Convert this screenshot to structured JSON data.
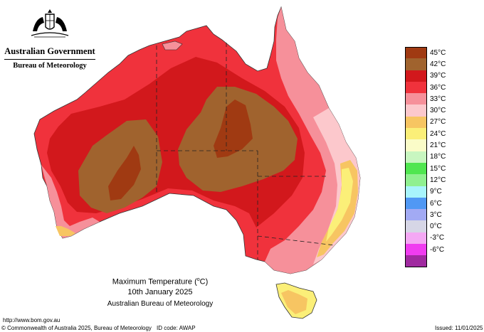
{
  "header": {
    "org_line1": "Australian Government",
    "org_line2": "Bureau of Meteorology"
  },
  "map_title": {
    "line1_prefix": "Maximum Temperature (",
    "line1_unit": "o",
    "line1_suffix": "C)",
    "line2": "10th January 2025",
    "line3": "Australian Bureau of Meteorology"
  },
  "legend": [
    {
      "label": "45°C",
      "color": "#a03a12"
    },
    {
      "label": "42°C",
      "color": "#a0632e"
    },
    {
      "label": "39°C",
      "color": "#d2181c"
    },
    {
      "label": "36°C",
      "color": "#f0323c"
    },
    {
      "label": "33°C",
      "color": "#f6909a"
    },
    {
      "label": "30°C",
      "color": "#fcc8cc"
    },
    {
      "label": "27°C",
      "color": "#f7c562"
    },
    {
      "label": "24°C",
      "color": "#fbef78"
    },
    {
      "label": "21°C",
      "color": "#fafcc8"
    },
    {
      "label": "18°C",
      "color": "#c8f6c0"
    },
    {
      "label": "15°C",
      "color": "#50e650"
    },
    {
      "label": "12°C",
      "color": "#90f090"
    },
    {
      "label": "9°C",
      "color": "#a8f4fc"
    },
    {
      "label": "6°C",
      "color": "#5098f4"
    },
    {
      "label": "3°C",
      "color": "#a2aaf4"
    },
    {
      "label": "0°C",
      "color": "#d6d6e6"
    },
    {
      "label": "-3°C",
      "color": "#f4a8f4"
    },
    {
      "label": "-6°C",
      "color": "#f03cf0"
    },
    {
      "label": "",
      "color": "#a02aa0"
    }
  ],
  "footer": {
    "url": "http://www.bom.gov.au",
    "copyright": "© Commonwealth of Australia 2025, Bureau of Meteorology",
    "id_code": "ID code: AWAP",
    "issued": "Issued: 11/01/2025"
  },
  "map": {
    "land_base_color": "#f0323c",
    "coast_color": "#f6909a",
    "border_color": "#222222"
  }
}
